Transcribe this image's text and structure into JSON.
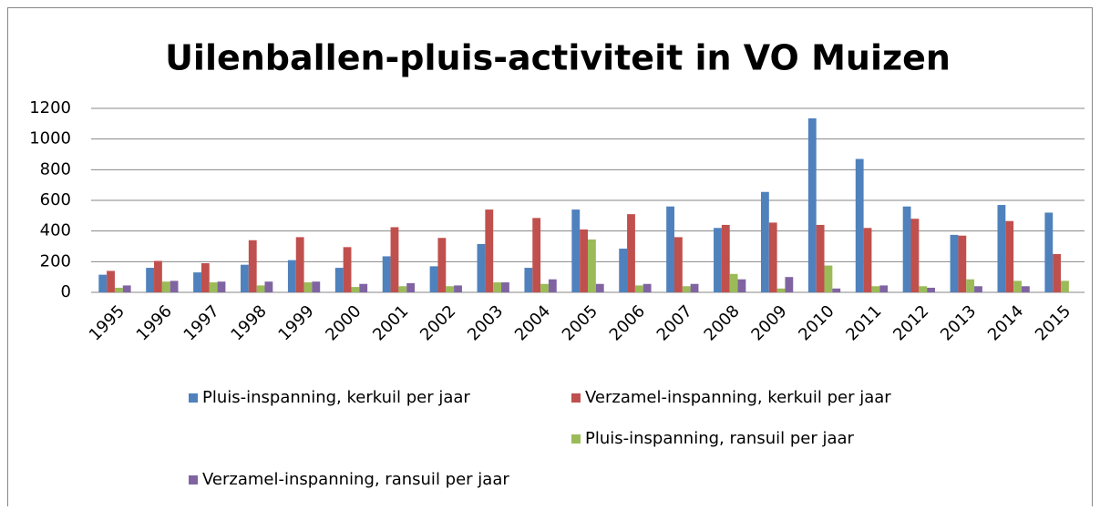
{
  "chart_data": {
    "type": "bar",
    "title": "Uilenballen-pluis-activiteit in VO Muizen",
    "categories": [
      "1995",
      "1996",
      "1997",
      "1998",
      "1999",
      "2000",
      "2001",
      "2002",
      "2003",
      "2004",
      "2005",
      "2006",
      "2007",
      "2008",
      "2009",
      "2010",
      "2011",
      "2012",
      "2013",
      "2014",
      "2015"
    ],
    "series": [
      {
        "name": "Pluis-inspanning, kerkuil per jaar",
        "color": "#4f81bd",
        "values": [
          115,
          160,
          130,
          180,
          210,
          160,
          235,
          170,
          315,
          160,
          540,
          285,
          560,
          420,
          655,
          1135,
          870,
          560,
          375,
          570,
          520
        ]
      },
      {
        "name": "Verzamel-inspanning, kerkuil per jaar",
        "color": "#c0504d",
        "values": [
          140,
          205,
          190,
          340,
          360,
          295,
          425,
          355,
          540,
          485,
          410,
          510,
          360,
          440,
          455,
          440,
          420,
          480,
          370,
          465,
          250
        ]
      },
      {
        "name": "Pluis-inspanning, ransuil per jaar",
        "color": "#9bbb59",
        "values": [
          30,
          70,
          65,
          45,
          65,
          35,
          40,
          40,
          65,
          55,
          345,
          45,
          40,
          120,
          25,
          175,
          40,
          40,
          85,
          75,
          75
        ]
      },
      {
        "name": "Verzamel-inspanning, ransuil per jaar",
        "color": "#8064a2",
        "values": [
          45,
          75,
          70,
          70,
          70,
          55,
          60,
          45,
          65,
          85,
          55,
          55,
          55,
          85,
          100,
          25,
          45,
          30,
          40,
          40,
          null
        ]
      }
    ],
    "ylim": [
      0,
      1200
    ],
    "yticks": [
      0,
      200,
      400,
      600,
      800,
      1000,
      1200
    ],
    "grid": true
  }
}
